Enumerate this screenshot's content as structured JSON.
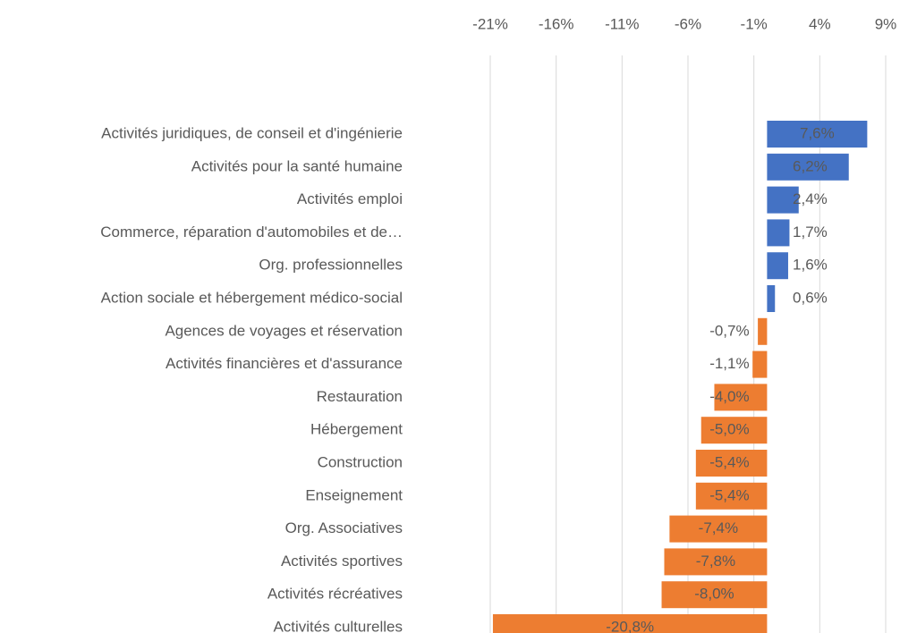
{
  "chart_data": {
    "type": "barh",
    "categories": [
      "Activités juridiques, de conseil et d'ingénierie",
      "Activités pour la santé humaine",
      "Activités emploi",
      "Commerce, réparation d'automobiles et de…",
      "Org. professionnelles",
      "Action sociale et hébergement médico-social",
      "Agences de voyages et réservation",
      "Activités financières et d'assurance",
      "Restauration",
      "Hébergement",
      "Construction",
      "Enseignement",
      "Org. Associatives",
      "Activités sportives",
      "Activités récréatives",
      "Activités culturelles"
    ],
    "values": [
      7.6,
      6.2,
      2.4,
      1.7,
      1.6,
      0.6,
      -0.7,
      -1.1,
      -4.0,
      -5.0,
      -5.4,
      -5.4,
      -7.4,
      -7.8,
      -8.0,
      -20.8
    ],
    "value_labels": [
      "7,6%",
      "6,2%",
      "2,4%",
      "1,7%",
      "1,6%",
      "0,6%",
      "-0,7%",
      "-1,1%",
      "-4,0%",
      "-5,0%",
      "-5,4%",
      "-5,4%",
      "-7,4%",
      "-7,8%",
      "-8,0%",
      "-20,8%"
    ],
    "color_positive": "#4472c4",
    "color_negative": "#ed7d31",
    "xlim": [
      -21,
      9
    ],
    "xticks": [
      {
        "value": -21,
        "label": "-21%"
      },
      {
        "value": -16,
        "label": "-16%"
      },
      {
        "value": -11,
        "label": "-11%"
      },
      {
        "value": -6,
        "label": "-6%"
      },
      {
        "value": -1,
        "label": "-1%"
      },
      {
        "value": 4,
        "label": "4%"
      },
      {
        "value": 9,
        "label": "9%"
      }
    ],
    "grid": true
  }
}
